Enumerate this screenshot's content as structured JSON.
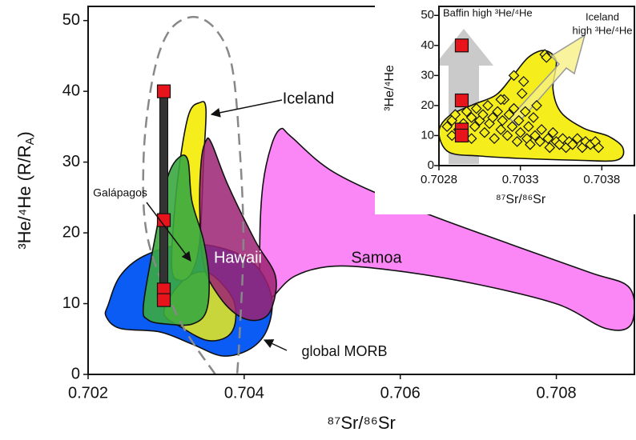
{
  "chart_data": [
    {
      "type": "scatter",
      "x_label": "⁸⁷Sr/⁸⁶Sr",
      "y_label": {
        "text": "³He/⁴He (R/R",
        "subscript": "A",
        "suffix": ")"
      },
      "xlim": [
        0.702,
        0.709
      ],
      "ylim": [
        0,
        52
      ],
      "xticks": [
        0.702,
        0.704,
        0.706,
        0.708
      ],
      "yticks": [
        0,
        10,
        20,
        30,
        40,
        50
      ],
      "fields": [
        {
          "name": "Samoa",
          "color": "#fb86f5",
          "opacity": 1,
          "x": [
            0.70422,
            0.7042,
            0.70424,
            0.70435,
            0.70447,
            0.7046,
            0.70516,
            0.70618,
            0.70741,
            0.70843,
            0.70894,
            0.70896,
            0.70863,
            0.70802,
            0.707,
            0.70598,
            0.70516,
            0.70465,
            0.70435
          ],
          "y": [
            10.1,
            18.9,
            26.8,
            32.4,
            34.7,
            33.6,
            28.5,
            23.4,
            18.4,
            14.4,
            12.2,
            7.1,
            6.5,
            9.9,
            12.7,
            14.6,
            15.3,
            13.9,
            10.8
          ]
        },
        {
          "name": "global MORB",
          "color": "#0a5cf5",
          "opacity": 1,
          "x": [
            0.70226,
            0.70241,
            0.70271,
            0.70322,
            0.70373,
            0.70414,
            0.70435,
            0.7043,
            0.70409,
            0.70373,
            0.70333,
            0.70292,
            0.70241,
            0.70223
          ],
          "y": [
            9.9,
            13.9,
            16.7,
            18.4,
            17.8,
            15.5,
            11.0,
            6.5,
            3.7,
            2.6,
            4.3,
            6.0,
            6.5,
            8.2
          ]
        },
        {
          "color": "#c9d63b",
          "opacity": 1,
          "x": [
            0.70297,
            0.70322,
            0.70353,
            0.70384,
            0.70389,
            0.70379,
            0.70353,
            0.70322
          ],
          "y": [
            8.8,
            13.3,
            14.4,
            11.0,
            7.7,
            5.4,
            4.8,
            6.5
          ]
        },
        {
          "name": "Iceland",
          "color": "#f5ee1c",
          "opacity": 1,
          "x": [
            0.70307,
            0.70314,
            0.70328,
            0.70343,
            0.70351,
            0.70348,
            0.70343,
            0.70333,
            0.70317
          ],
          "y": [
            15.5,
            26.8,
            36.4,
            38.4,
            37.5,
            30.2,
            18.9,
            14.4,
            13.3
          ]
        },
        {
          "name": "Hawaii",
          "color": "#9b2272",
          "opacity": 0.85,
          "x": [
            0.70348,
            0.70343,
            0.70345,
            0.70351,
            0.70358,
            0.70379,
            0.70414,
            0.7044,
            0.70435,
            0.70419,
            0.70394,
            0.70368
          ],
          "y": [
            15.5,
            23.4,
            30.2,
            33.0,
            32.7,
            26.8,
            18.9,
            13.9,
            9.3,
            7.7,
            8.2,
            11.0
          ]
        },
        {
          "name": "Galápagos",
          "color": "#3aa840",
          "opacity": 0.9,
          "x": [
            0.70271,
            0.70287,
            0.70302,
            0.70317,
            0.70328,
            0.70333,
            0.70348,
            0.70355,
            0.70351,
            0.70333,
            0.70302,
            0.70277
          ],
          "y": [
            9.9,
            20.0,
            27.9,
            30.7,
            30.2,
            24.5,
            18.9,
            13.3,
            8.8,
            7.1,
            7.1,
            7.7
          ]
        },
        {
          "color": "#888888",
          "style": "dashed",
          "closed": false,
          "x": [
            0.70363,
            0.70317,
            0.70277,
            0.70271,
            0.70282,
            0.70302,
            0.70333,
            0.70363,
            0.70384,
            0.70394,
            0.70399,
            0.70394,
            0.70391
          ],
          "y": [
            0,
            7.7,
            18.9,
            30.2,
            41.4,
            48.2,
            50.5,
            48.8,
            43.7,
            32.4,
            18.9,
            5.4,
            0
          ]
        }
      ],
      "series": [
        {
          "color": "#e8141c",
          "marker": "square",
          "bar": true,
          "x": [
            0.70297,
            0.70297,
            0.70297,
            0.70297
          ],
          "values": [
            40,
            21.8,
            12,
            10.5
          ]
        }
      ]
    },
    {
      "type": "scatter",
      "x_label": "⁸⁷Sr/⁸⁶Sr",
      "y_label": {
        "text": "³He/⁴He"
      },
      "xlim": [
        0.7028,
        0.704
      ],
      "ylim": [
        0,
        53
      ],
      "xticks": [
        0.7028,
        0.7033,
        0.7038
      ],
      "yticks": [
        0,
        10,
        20,
        30,
        40,
        50
      ],
      "annotations": [
        [
          "Baffin high ³He/⁴He"
        ],
        [
          "Iceland",
          "high ³He/⁴He"
        ]
      ],
      "fields": [
        {
          "color": "#f5ee1c",
          "opacity": 1,
          "x": [
            0.7028,
            0.70286,
            0.70301,
            0.70315,
            0.70325,
            0.70335,
            0.70345,
            0.70352,
            0.7035,
            0.70355,
            0.70369,
            0.70384,
            0.70393,
            0.70389,
            0.70364,
            0.7033,
            0.70305,
            0.70286
          ],
          "y": [
            11.1,
            16.4,
            20.3,
            23.5,
            29.6,
            36.1,
            38.3,
            34.8,
            25.6,
            17.7,
            12.4,
            9.8,
            5.8,
            1.8,
            1.8,
            2.4,
            3.2,
            4.5
          ]
        }
      ],
      "series": [
        {
          "color": "#f5ee1c",
          "marker": "diamond",
          "x": [
            0.70285,
            0.70288,
            0.7029,
            0.70292,
            0.70295,
            0.70297,
            0.703,
            0.70302,
            0.70303,
            0.70305,
            0.70307,
            0.70308,
            0.7031,
            0.70311,
            0.70313,
            0.70314,
            0.70316,
            0.70318,
            0.70319,
            0.7032,
            0.70322,
            0.70323,
            0.70325,
            0.70326,
            0.70328,
            0.70329,
            0.7033,
            0.70331,
            0.70332,
            0.70333,
            0.70334,
            0.70335,
            0.70336,
            0.70338,
            0.70339,
            0.7034,
            0.70342,
            0.70343,
            0.70345,
            0.70346,
            0.70347,
            0.70348,
            0.7035,
            0.70352,
            0.70354,
            0.70356,
            0.70358,
            0.7036,
            0.70362,
            0.70365,
            0.70368,
            0.7037,
            0.70373,
            0.70376,
            0.70378,
            0.70326,
            0.70318,
            0.70288,
            0.703
          ],
          "values": [
            13,
            15,
            17,
            12,
            14,
            18,
            16,
            13,
            19,
            15,
            17,
            11,
            20,
            14,
            16,
            9,
            18,
            12,
            15,
            22,
            10,
            17,
            13,
            19,
            8,
            15,
            11,
            24,
            28,
            18,
            9,
            13,
            7,
            16,
            10,
            20,
            8,
            12,
            37,
            36,
            9,
            6,
            11,
            8,
            7,
            9,
            6,
            8,
            7,
            9,
            6,
            8,
            7,
            8,
            6,
            30,
            22,
            10,
            9
          ]
        },
        {
          "color": "#e8141c",
          "marker": "square",
          "x": [
            0.70294,
            0.70294,
            0.70294,
            0.70294
          ],
          "values": [
            40,
            21.7,
            12,
            10
          ]
        }
      ]
    }
  ]
}
